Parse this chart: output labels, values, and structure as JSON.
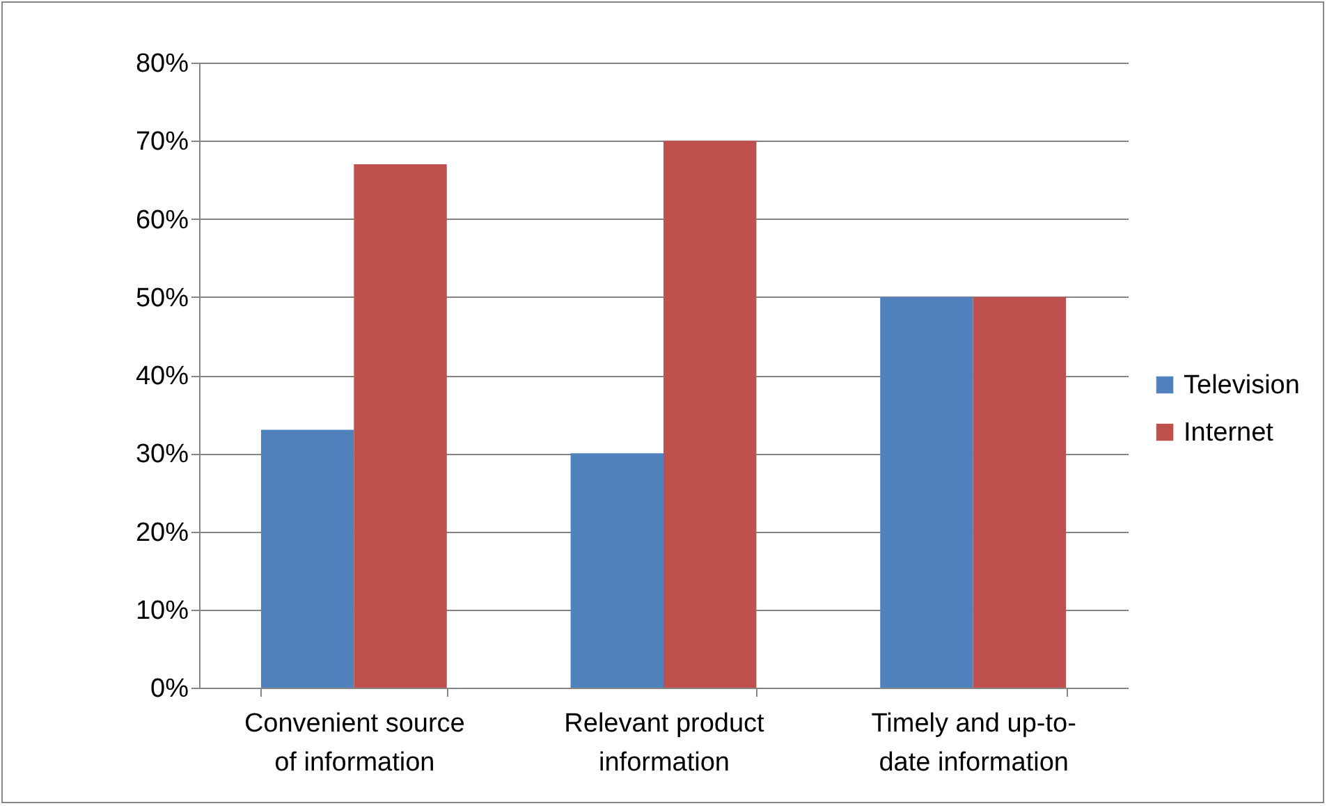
{
  "chart_data": {
    "type": "bar",
    "categories": [
      "Convenient source of information",
      "Relevant product information",
      "Timely and up-to-date information"
    ],
    "series": [
      {
        "name": "Television",
        "color": "#4f81bd",
        "values": [
          33,
          30,
          50
        ]
      },
      {
        "name": "Internet",
        "color": "#c0504d",
        "values": [
          67,
          70,
          50
        ]
      }
    ],
    "ylim": [
      0,
      80
    ],
    "yticks": [
      {
        "value": 0,
        "label": "0%"
      },
      {
        "value": 10,
        "label": "10%"
      },
      {
        "value": 20,
        "label": "20%"
      },
      {
        "value": 30,
        "label": "30%"
      },
      {
        "value": 40,
        "label": "40%"
      },
      {
        "value": 50,
        "label": "50%"
      },
      {
        "value": 60,
        "label": "60%"
      },
      {
        "value": 70,
        "label": "70%"
      },
      {
        "value": 80,
        "label": "80%"
      }
    ],
    "grid": "y",
    "legend": "right"
  }
}
